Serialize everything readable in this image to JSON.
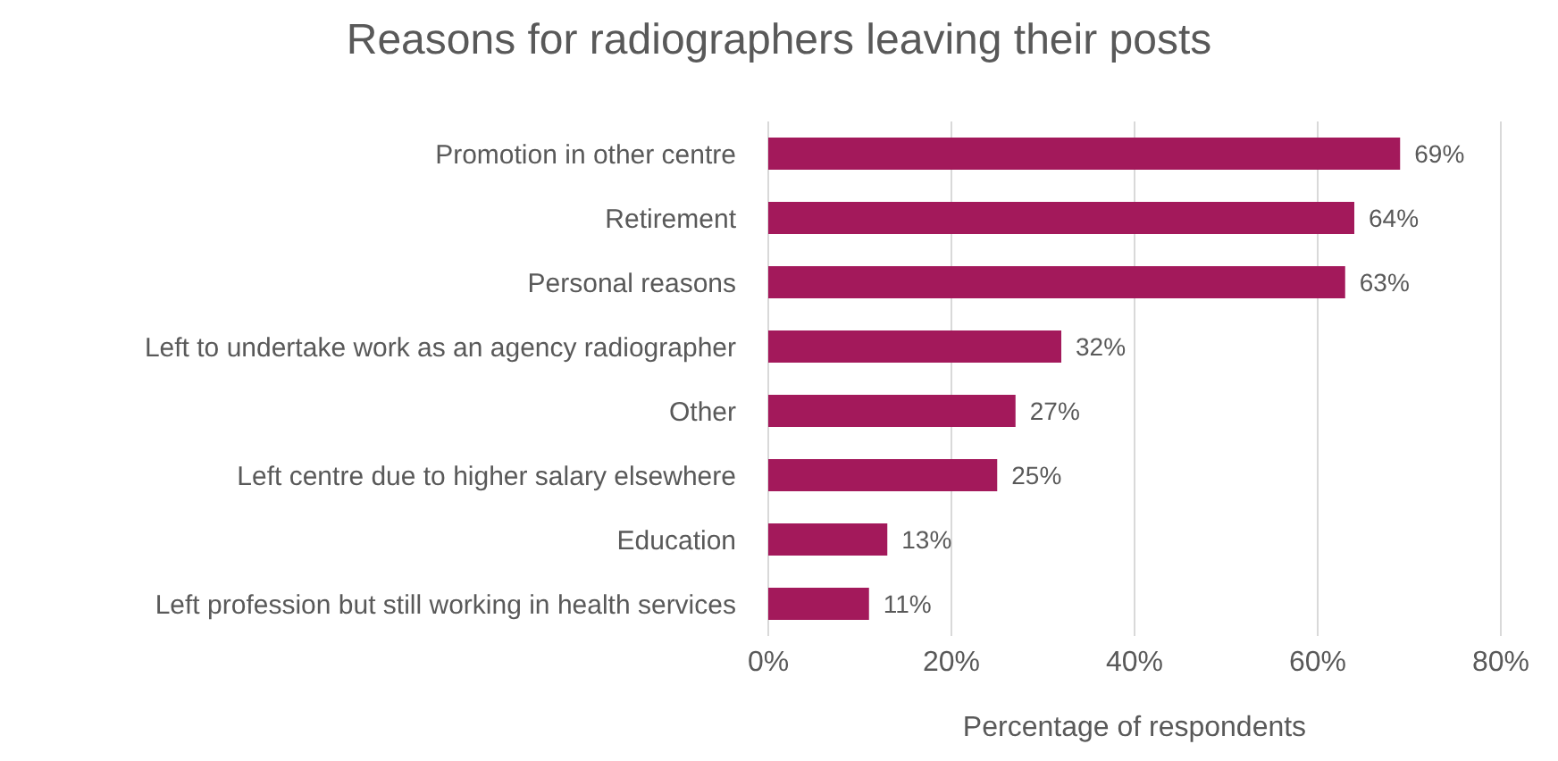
{
  "chart_data": {
    "type": "bar",
    "orientation": "horizontal",
    "title": "Reasons for radiographers leaving their posts",
    "xlabel": "Percentage of respondents",
    "categories": [
      "Promotion in other centre",
      "Retirement",
      "Personal reasons",
      "Left to undertake work as an agency radiographer",
      "Other",
      "Left centre due to higher salary elsewhere",
      "Education",
      "Left profession but still working in health services"
    ],
    "values": [
      69,
      64,
      63,
      32,
      27,
      25,
      13,
      11
    ],
    "value_labels": [
      "69%",
      "64%",
      "63%",
      "32%",
      "27%",
      "25%",
      "13%",
      "11%"
    ],
    "color": "#a3195b",
    "xlim": [
      0,
      80
    ],
    "xticks": [
      {
        "value": 0,
        "label": "0%"
      },
      {
        "value": 20,
        "label": "20%"
      },
      {
        "value": 40,
        "label": "40%"
      },
      {
        "value": 60,
        "label": "60%"
      },
      {
        "value": 80,
        "label": "80%"
      }
    ],
    "grid": "x",
    "legend": false
  }
}
